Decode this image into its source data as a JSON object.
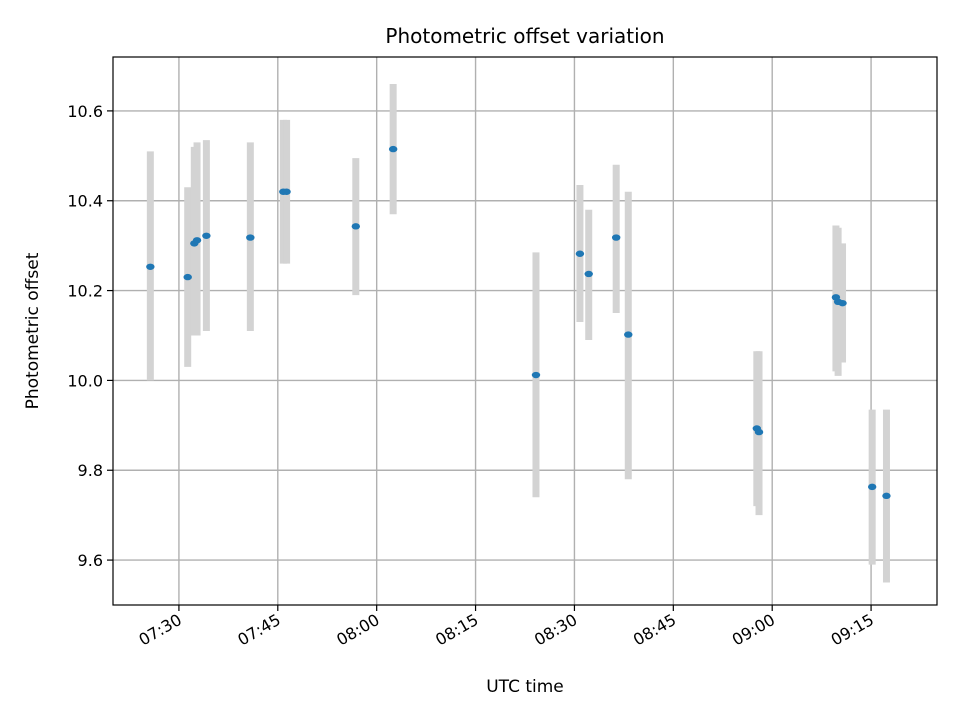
{
  "chart_data": {
    "type": "scatter",
    "title": "Photometric offset variation",
    "xlabel": "UTC time",
    "ylabel": "Photometric offset",
    "x_axis": "time",
    "xlim": [
      "07:20:00",
      "09:25:00"
    ],
    "ylim": [
      9.5,
      10.72
    ],
    "xticks": [
      "07:30",
      "07:45",
      "08:00",
      "08:15",
      "08:30",
      "08:45",
      "09:00",
      "09:15"
    ],
    "yticks": [
      9.6,
      9.8,
      10.0,
      10.2,
      10.4,
      10.6
    ],
    "grid": true,
    "colors": {
      "marker": "#1f77b4",
      "errorbar": "#d3d3d3",
      "grid": "#b0b0b0"
    },
    "points": [
      {
        "x": "07:25:40",
        "y": 10.253,
        "ylow": 10.0,
        "yhigh": 10.51
      },
      {
        "x": "07:31:20",
        "y": 10.23,
        "ylow": 10.03,
        "yhigh": 10.43
      },
      {
        "x": "07:32:20",
        "y": 10.305,
        "ylow": 10.1,
        "yhigh": 10.52
      },
      {
        "x": "07:32:45",
        "y": 10.312,
        "ylow": 10.1,
        "yhigh": 10.53
      },
      {
        "x": "07:34:10",
        "y": 10.322,
        "ylow": 10.11,
        "yhigh": 10.535
      },
      {
        "x": "07:40:50",
        "y": 10.318,
        "ylow": 10.11,
        "yhigh": 10.53
      },
      {
        "x": "07:45:50",
        "y": 10.42,
        "ylow": 10.26,
        "yhigh": 10.58
      },
      {
        "x": "07:46:20",
        "y": 10.42,
        "ylow": 10.26,
        "yhigh": 10.58
      },
      {
        "x": "07:56:50",
        "y": 10.343,
        "ylow": 10.19,
        "yhigh": 10.495
      },
      {
        "x": "08:02:30",
        "y": 10.515,
        "ylow": 10.37,
        "yhigh": 10.66
      },
      {
        "x": "08:24:10",
        "y": 10.012,
        "ylow": 9.74,
        "yhigh": 10.285
      },
      {
        "x": "08:30:50",
        "y": 10.282,
        "ylow": 10.13,
        "yhigh": 10.435
      },
      {
        "x": "08:32:10",
        "y": 10.237,
        "ylow": 10.09,
        "yhigh": 10.38
      },
      {
        "x": "08:36:20",
        "y": 10.318,
        "ylow": 10.15,
        "yhigh": 10.48
      },
      {
        "x": "08:38:10",
        "y": 10.102,
        "ylow": 9.78,
        "yhigh": 10.42
      },
      {
        "x": "08:57:40",
        "y": 9.893,
        "ylow": 9.72,
        "yhigh": 10.065
      },
      {
        "x": "08:58:00",
        "y": 9.885,
        "ylow": 9.7,
        "yhigh": 10.065
      },
      {
        "x": "09:09:40",
        "y": 10.185,
        "ylow": 10.02,
        "yhigh": 10.345
      },
      {
        "x": "09:10:00",
        "y": 10.175,
        "ylow": 10.01,
        "yhigh": 10.34
      },
      {
        "x": "09:10:40",
        "y": 10.172,
        "ylow": 10.04,
        "yhigh": 10.305
      },
      {
        "x": "09:15:10",
        "y": 9.763,
        "ylow": 9.59,
        "yhigh": 9.935
      },
      {
        "x": "09:17:20",
        "y": 9.743,
        "ylow": 9.55,
        "yhigh": 9.935
      }
    ]
  }
}
